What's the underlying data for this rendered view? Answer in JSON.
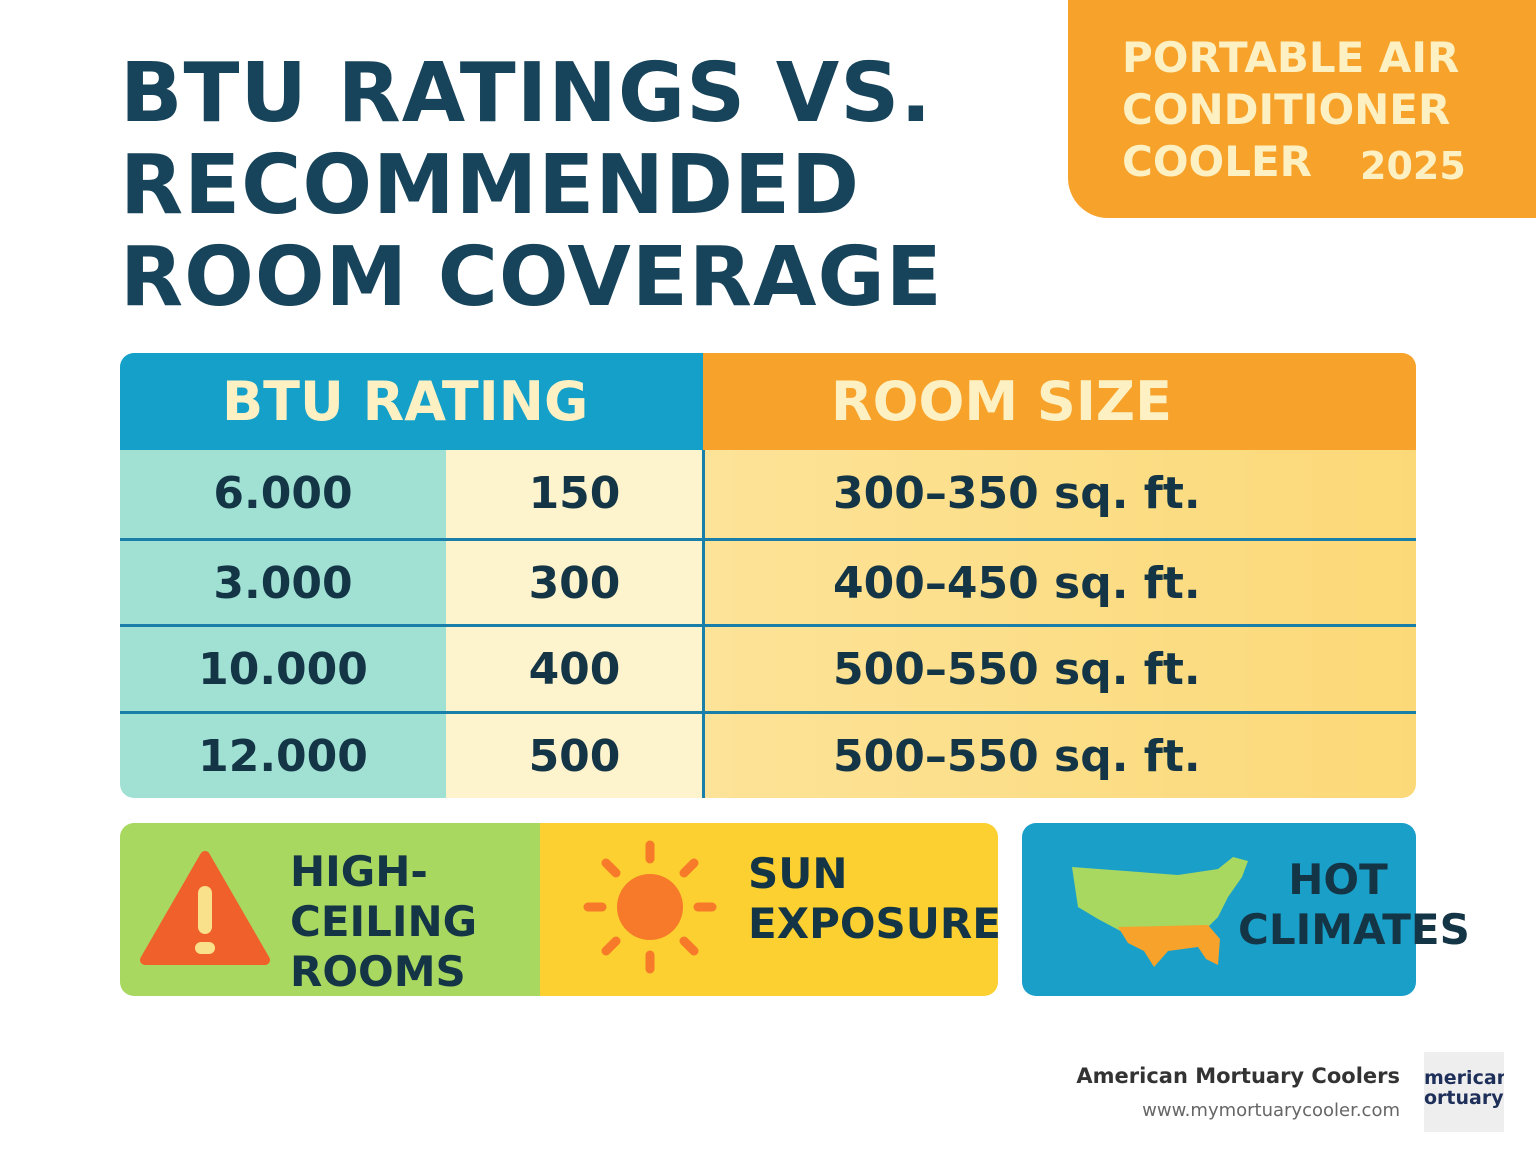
{
  "header": {
    "title_lines": [
      "BTU RATINGS VS.",
      "RECOMMENDED",
      "ROOM COVERAGE"
    ],
    "badge_lines": [
      "PORTABLE AIR",
      "CONDITIONER",
      "COOLER"
    ],
    "badge_year": "2025"
  },
  "table": {
    "headers": [
      "BTU RATING",
      "ROOM SIZE"
    ],
    "rows": [
      [
        "6.000",
        "150",
        "300–350 sq. ft."
      ],
      [
        "3.000",
        "300",
        "400–450 sq. ft."
      ],
      [
        "10.000",
        "400",
        "500–550 sq. ft."
      ],
      [
        "12.000",
        "500",
        "500–550 sq. ft."
      ]
    ]
  },
  "factors": [
    {
      "lines": [
        "HIGH-",
        "CEILING",
        "ROOMS"
      ]
    },
    {
      "lines": [
        "SUN",
        "EXPOSURE"
      ]
    },
    {
      "lines": [
        "HOT",
        "CLIMATES"
      ]
    }
  ],
  "footer": {
    "company": "American Mortuary Coolers",
    "url": "www.mymortuarycooler.com",
    "logo_lines": [
      "merican",
      "ortuary"
    ]
  }
}
